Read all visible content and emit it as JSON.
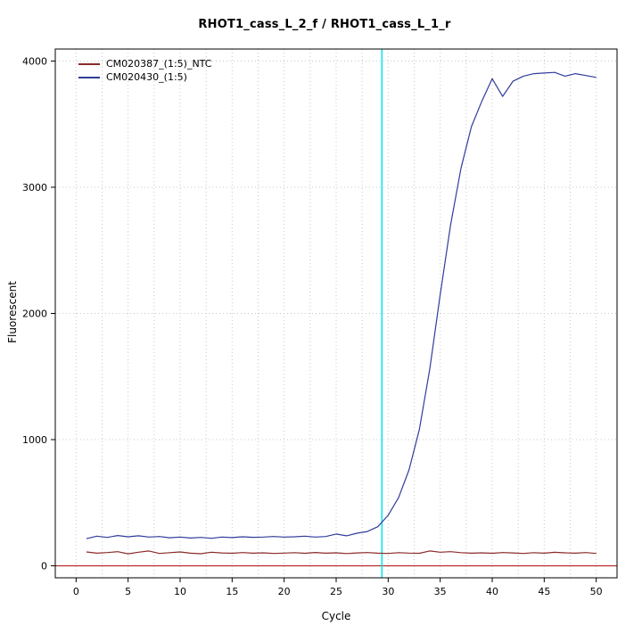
{
  "chart_data": {
    "type": "line",
    "title": "RHOT1_cass_L_2_f / RHOT1_cass_L_1_r",
    "xlabel": "Cycle",
    "ylabel": "Fluorescent",
    "xlim": [
      0,
      50
    ],
    "ylim": [
      0,
      4000
    ],
    "xticks": [
      0,
      5,
      10,
      15,
      20,
      25,
      30,
      35,
      40,
      45,
      50
    ],
    "yticks": [
      0,
      1000,
      2000,
      3000,
      4000
    ],
    "grid": {
      "style": "dotted",
      "color": "#c8c8c8",
      "x_step": 2.5
    },
    "legend_position": "top-left",
    "baseline_line": {
      "y": 0,
      "color": "#b22222"
    },
    "ct_marker_line": {
      "x": 29.4,
      "color": "#00e5ee"
    },
    "x": [
      1,
      2,
      3,
      4,
      5,
      6,
      7,
      8,
      9,
      10,
      11,
      12,
      13,
      14,
      15,
      16,
      17,
      18,
      19,
      20,
      21,
      22,
      23,
      24,
      25,
      26,
      27,
      28,
      29,
      30,
      31,
      32,
      33,
      34,
      35,
      36,
      37,
      38,
      39,
      40,
      41,
      42,
      43,
      44,
      45,
      46,
      47,
      48,
      49,
      50
    ],
    "series": [
      {
        "name": "CM020387_(1:5)_NTC",
        "color": "#8b2a2a",
        "values": [
          110,
          100,
          105,
          112,
          95,
          108,
          118,
          98,
          104,
          110,
          100,
          96,
          108,
          102,
          99,
          105,
          100,
          103,
          98,
          101,
          104,
          99,
          106,
          100,
          103,
          97,
          102,
          105,
          100,
          98,
          104,
          101,
          99,
          118,
          108,
          112,
          104,
          100,
          103,
          99,
          105,
          102,
          98,
          104,
          100,
          107,
          103,
          100,
          105,
          98
        ]
      },
      {
        "name": "CM020430_(1:5)",
        "color": "#2f3c9c",
        "values": [
          215,
          235,
          225,
          240,
          230,
          238,
          228,
          232,
          222,
          228,
          220,
          225,
          218,
          228,
          224,
          230,
          226,
          228,
          232,
          228,
          230,
          235,
          228,
          232,
          252,
          238,
          258,
          272,
          310,
          400,
          540,
          760,
          1080,
          1560,
          2150,
          2700,
          3150,
          3480,
          3680,
          3860,
          3720,
          3840,
          3880,
          3900,
          3905,
          3910,
          3880,
          3900,
          3885,
          3870
        ]
      }
    ]
  }
}
